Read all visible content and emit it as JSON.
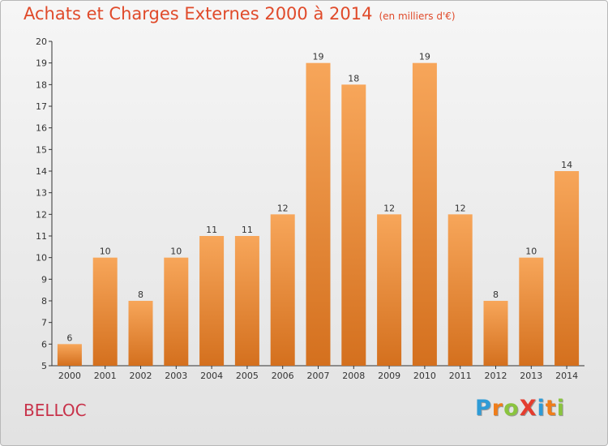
{
  "header": {
    "title": "Achats et Charges Externes 2000 à 2014",
    "subtitle": "(en milliers d'€)"
  },
  "commune": "BELLOC",
  "logo": {
    "text": "ProXiti",
    "letters": [
      {
        "char": "P",
        "color": "#2e9bd6"
      },
      {
        "char": "r",
        "color": "#ef7d1a"
      },
      {
        "char": "o",
        "color": "#8ac43f"
      },
      {
        "char": "X",
        "color": "#e43d2f"
      },
      {
        "char": "i",
        "color": "#2e9bd6"
      },
      {
        "char": "t",
        "color": "#ef7d1a"
      },
      {
        "char": "i",
        "color": "#8ac43f"
      }
    ]
  },
  "colors": {
    "bar_top": "#f7a65a",
    "bar_bottom": "#d4701e",
    "title": "#e04a2a",
    "axis": "#333333"
  },
  "chart_data": {
    "type": "bar",
    "title": "Achats et Charges Externes 2000 à 2014",
    "subtitle": "(en milliers d'€)",
    "xlabel": "",
    "ylabel": "",
    "categories": [
      "2000",
      "2001",
      "2002",
      "2003",
      "2004",
      "2005",
      "2006",
      "2007",
      "2008",
      "2009",
      "2010",
      "2011",
      "2012",
      "2013",
      "2014"
    ],
    "values": [
      6,
      10,
      8,
      10,
      11,
      11,
      12,
      19,
      18,
      12,
      19,
      12,
      8,
      10,
      14
    ],
    "ylim": [
      5,
      20
    ],
    "yticks": [
      5,
      6,
      7,
      8,
      9,
      10,
      11,
      12,
      13,
      14,
      15,
      16,
      17,
      18,
      19,
      20
    ],
    "grid": false,
    "data_labels": true
  }
}
